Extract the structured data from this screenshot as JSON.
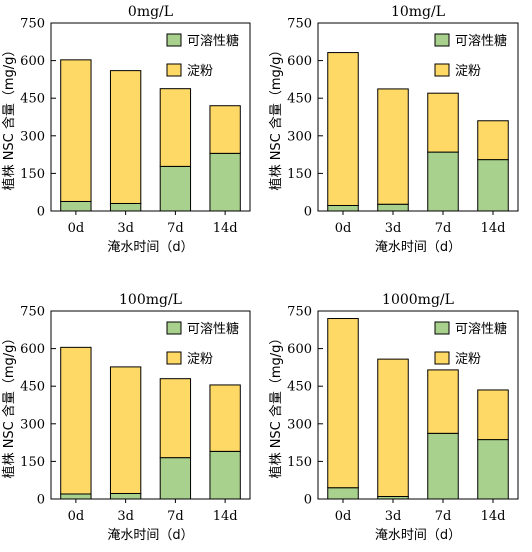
{
  "chart_data": [
    {
      "type": "bar",
      "stacked": true,
      "title": "0mg/L",
      "xlabel": "淹水时间（d）",
      "ylabel": "植株 NSC 含量（mg/g）",
      "ylim": [
        0,
        750
      ],
      "yticks": [
        "0",
        "150",
        "300",
        "450",
        "600",
        "750"
      ],
      "categories": [
        "0d",
        "3d",
        "7d",
        "14d"
      ],
      "series": [
        {
          "name": "可溶性糖",
          "color": "#a9d18e",
          "values": [
            38,
            30,
            178,
            230
          ]
        },
        {
          "name": "淀粉",
          "color": "#ffd966",
          "values": [
            565,
            530,
            310,
            190
          ]
        }
      ],
      "grid": false,
      "legend": "top-right"
    },
    {
      "type": "bar",
      "stacked": true,
      "title": "10mg/L",
      "xlabel": "淹水时间（d）",
      "ylabel": "植株 NSC 含量（mg/g）",
      "ylim": [
        0,
        750
      ],
      "yticks": [
        "0",
        "150",
        "300",
        "450",
        "600",
        "750"
      ],
      "categories": [
        "0d",
        "3d",
        "7d",
        "14d"
      ],
      "series": [
        {
          "name": "可溶性糖",
          "color": "#a9d18e",
          "values": [
            22,
            27,
            235,
            205
          ]
        },
        {
          "name": "淀粉",
          "color": "#ffd966",
          "values": [
            610,
            460,
            235,
            155
          ]
        }
      ],
      "grid": false,
      "legend": "top-right"
    },
    {
      "type": "bar",
      "stacked": true,
      "title": "100mg/L",
      "xlabel": "淹水时间（d）",
      "ylabel": "植株 NSC 含量（mg/g）",
      "ylim": [
        0,
        750
      ],
      "yticks": [
        "0",
        "150",
        "300",
        "450",
        "600",
        "750"
      ],
      "categories": [
        "0d",
        "3d",
        "7d",
        "14d"
      ],
      "series": [
        {
          "name": "可溶性糖",
          "color": "#a9d18e",
          "values": [
            20,
            22,
            165,
            190
          ]
        },
        {
          "name": "淀粉",
          "color": "#ffd966",
          "values": [
            585,
            505,
            315,
            265
          ]
        }
      ],
      "grid": false,
      "legend": "top-right"
    },
    {
      "type": "bar",
      "stacked": true,
      "title": "1000mg/L",
      "xlabel": "淹水时间（d）",
      "ylabel": "植株 NSC 含量（mg/g）",
      "ylim": [
        0,
        750
      ],
      "yticks": [
        "0",
        "150",
        "300",
        "450",
        "600",
        "750"
      ],
      "categories": [
        "0d",
        "3d",
        "7d",
        "14d"
      ],
      "series": [
        {
          "name": "可溶性糖",
          "color": "#a9d18e",
          "values": [
            45,
            10,
            262,
            237
          ]
        },
        {
          "name": "淀粉",
          "color": "#ffd966",
          "values": [
            675,
            548,
            253,
            198
          ]
        }
      ],
      "grid": false,
      "legend": "top-right"
    }
  ]
}
